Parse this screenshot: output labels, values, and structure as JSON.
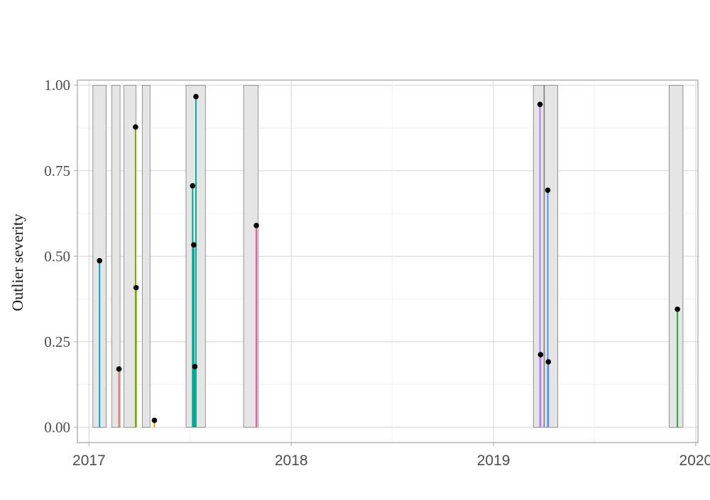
{
  "chart_data": {
    "type": "scatter",
    "title": "",
    "xlabel": "",
    "ylabel": "Outlier severity",
    "x_ticks": [
      "2017",
      "2018",
      "2019",
      "2020"
    ],
    "y_ticks": [
      "0.00",
      "0.25",
      "0.50",
      "0.75",
      "1.00"
    ],
    "xlim": [
      "2016-12-11",
      "2020-01-05"
    ],
    "ylim": [
      -0.045,
      1.015
    ],
    "grid": true,
    "legend": "none",
    "outlier_windows": [
      {
        "start": "2017-01-08",
        "end": "2017-02-01"
      },
      {
        "start": "2017-02-11",
        "end": "2017-02-26"
      },
      {
        "start": "2017-03-05",
        "end": "2017-03-27"
      },
      {
        "start": "2017-04-07",
        "end": "2017-04-21"
      },
      {
        "start": "2017-06-25",
        "end": "2017-07-30"
      },
      {
        "start": "2017-10-07",
        "end": "2017-11-02"
      },
      {
        "start": "2019-03-14",
        "end": "2019-04-02"
      },
      {
        "start": "2019-04-03",
        "end": "2019-04-27"
      },
      {
        "start": "2019-11-14",
        "end": "2019-12-09"
      }
    ],
    "points": [
      {
        "x": "2017-01-20",
        "y": 0.487,
        "color": "#00A5C8"
      },
      {
        "x": "2017-02-24",
        "y": 0.17,
        "color": "#F8766D"
      },
      {
        "x": "2017-03-26",
        "y": 0.878,
        "color": "#7CAE00"
      },
      {
        "x": "2017-03-27",
        "y": 0.408,
        "color": "#7CAE00"
      },
      {
        "x": "2017-04-29",
        "y": 0.02,
        "color": "#E7A600"
      },
      {
        "x": "2017-07-07",
        "y": 0.706,
        "color": "#00A88F"
      },
      {
        "x": "2017-07-09",
        "y": 0.533,
        "color": "#00A88F"
      },
      {
        "x": "2017-07-11",
        "y": 0.177,
        "color": "#00A88F"
      },
      {
        "x": "2017-07-13",
        "y": 0.967,
        "color": "#00B0A0"
      },
      {
        "x": "2017-10-30",
        "y": 0.59,
        "color": "#F0509E"
      },
      {
        "x": "2019-03-26",
        "y": 0.944,
        "color": "#B57BF5"
      },
      {
        "x": "2019-03-27",
        "y": 0.212,
        "color": "#B57BF5"
      },
      {
        "x": "2019-04-09",
        "y": 0.693,
        "color": "#5C8EEB"
      },
      {
        "x": "2019-04-10",
        "y": 0.191,
        "color": "#5C8EEB"
      },
      {
        "x": "2019-11-29",
        "y": 0.345,
        "color": "#1AAB40"
      }
    ]
  }
}
